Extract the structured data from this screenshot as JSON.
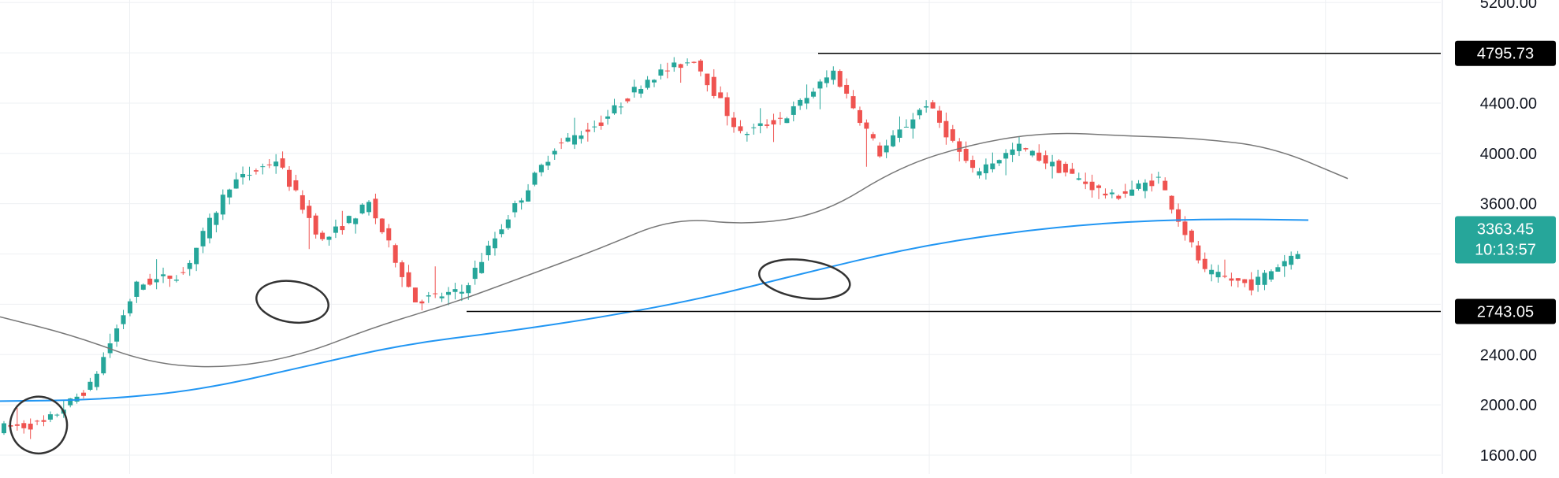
{
  "chart_data": {
    "type": "candlestick",
    "y_axis": {
      "position": "right",
      "ticks": [
        5200,
        4800,
        4400,
        4000,
        3600,
        3200,
        2800,
        2400,
        2000,
        1600
      ],
      "tick_labels": [
        "5200.00",
        "4400.00",
        "4000.00",
        "3600.00",
        "2400.00",
        "2000.00",
        "1600.00"
      ],
      "ylim": [
        1450,
        5220
      ]
    },
    "grid": true,
    "series": [
      {
        "kind": "candles",
        "color_up": "#26a69a",
        "color_down": "#ef5350",
        "ohlc_anchors": [
          [
            1815,
            2030,
            1720,
            1850
          ],
          [
            1850,
            2180,
            1840,
            2150
          ],
          [
            2150,
            3000,
            2100,
            2950
          ],
          [
            2950,
            3350,
            2850,
            3050
          ],
          [
            3050,
            3800,
            3000,
            3750
          ],
          [
            3750,
            4050,
            3700,
            3950
          ],
          [
            3950,
            3980,
            2850,
            3300
          ],
          [
            3300,
            3750,
            3150,
            3600
          ],
          [
            3600,
            3650,
            2750,
            2830
          ],
          [
            2830,
            3250,
            2740,
            2900
          ],
          [
            2900,
            3550,
            2850,
            3500
          ],
          [
            3500,
            4100,
            3450,
            4050
          ],
          [
            4050,
            4500,
            3900,
            4250
          ],
          [
            4250,
            4650,
            4200,
            4600
          ],
          [
            4600,
            4800,
            4450,
            4750
          ],
          [
            4750,
            4780,
            4050,
            4150
          ],
          [
            4150,
            4450,
            3950,
            4300
          ],
          [
            4300,
            4800,
            4000,
            4650
          ],
          [
            4650,
            4700,
            3450,
            4000
          ],
          [
            4000,
            4500,
            3950,
            4400
          ],
          [
            4400,
            4450,
            3700,
            3850
          ],
          [
            3850,
            4150,
            3650,
            4050
          ],
          [
            4050,
            4150,
            3750,
            3850
          ],
          [
            3850,
            3900,
            3580,
            3650
          ],
          [
            3650,
            3880,
            3550,
            3800
          ],
          [
            3800,
            3850,
            3000,
            3050
          ],
          [
            3050,
            3200,
            2880,
            2950
          ],
          [
            2950,
            3250,
            2880,
            3230
          ]
        ]
      },
      {
        "kind": "line",
        "color": "#777777",
        "values": [
          2700,
          2550,
          2330,
          2290,
          2390,
          2620,
          2800,
          3020,
          3240,
          3490,
          3430,
          3520,
          3890,
          4080,
          4170,
          4140,
          4120,
          4050,
          3800
        ]
      },
      {
        "kind": "line",
        "color": "#2196f3",
        "values": [
          2030,
          2040,
          2120,
          2300,
          2480,
          2580,
          2700,
          2850,
          3050,
          3240,
          3370,
          3450,
          3480,
          3470
        ]
      }
    ],
    "horizontal_lines": [
      {
        "value": 4795.73,
        "label": "4795.73",
        "bg": "#000000",
        "fg": "#ffffff"
      },
      {
        "value": 2743.05,
        "label": "2743.05",
        "bg": "#000000",
        "fg": "#ffffff"
      }
    ],
    "price_marker": {
      "price": "3363.45",
      "countdown": "10:13:57",
      "value": 3363.45,
      "bg": "#26a69a",
      "fg": "#ffffff"
    },
    "annotations": [
      {
        "type": "circle",
        "x": 52,
        "y": 1840
      },
      {
        "type": "circle",
        "x": 394,
        "y": 2820
      },
      {
        "type": "circle",
        "x": 1084,
        "y": 3000
      }
    ]
  }
}
